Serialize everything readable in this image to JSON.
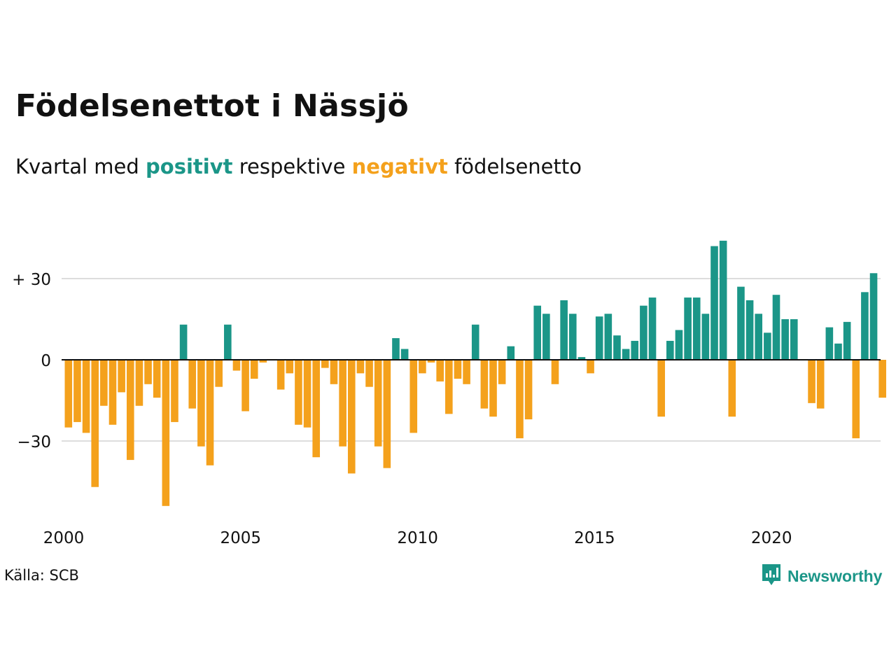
{
  "title": "Födelsenettot i Nässjö",
  "subtitle": {
    "prefix": "Kvartal med",
    "positive_word": "positivt",
    "middle": "respektive",
    "negative_word": "negativt",
    "suffix": "födelsenetto"
  },
  "source": "Källa: SCB",
  "brand": {
    "name": "Newsworthy",
    "logo_icon": "newsworthy-logo-icon"
  },
  "colors": {
    "positive": "#1b9688",
    "negative": "#f4a11c",
    "grid": "#dddddd",
    "text": "#111111"
  },
  "chart_data": {
    "type": "bar",
    "x_start": "2000 Q1",
    "frequency": "quarter",
    "values": [
      -25,
      -23,
      -27,
      -47,
      -17,
      -24,
      -12,
      -37,
      -17,
      -9,
      -14,
      -54,
      -23,
      13,
      -18,
      -32,
      -39,
      -10,
      13,
      -4,
      -19,
      -7,
      -1,
      0,
      -11,
      -5,
      -24,
      -25,
      -36,
      -3,
      -9,
      -32,
      -42,
      -5,
      -10,
      -32,
      -40,
      8,
      4,
      -27,
      -5,
      -1,
      -8,
      -20,
      -7,
      -9,
      13,
      -18,
      -21,
      -9,
      5,
      -29,
      -22,
      20,
      17,
      -9,
      22,
      17,
      1,
      -5,
      16,
      17,
      9,
      4,
      7,
      20,
      23,
      -21,
      7,
      11,
      23,
      23,
      17,
      42,
      44,
      -21,
      27,
      22,
      17,
      10,
      24,
      15,
      15,
      0,
      -16,
      -18,
      12,
      6,
      14,
      -29,
      25,
      32,
      -14
    ],
    "x_ticks": [
      {
        "year": 2000,
        "label": "2000"
      },
      {
        "year": 2005,
        "label": "2005"
      },
      {
        "year": 2010,
        "label": "2010"
      },
      {
        "year": 2015,
        "label": "2015"
      },
      {
        "year": 2020,
        "label": "2020"
      }
    ],
    "y_ticks": [
      {
        "value": 30,
        "label": "+ 30"
      },
      {
        "value": 0,
        "label": "0"
      },
      {
        "value": -30,
        "label": "−30"
      }
    ],
    "ylim": [
      -55,
      45
    ],
    "grid": true,
    "legend": "none"
  }
}
